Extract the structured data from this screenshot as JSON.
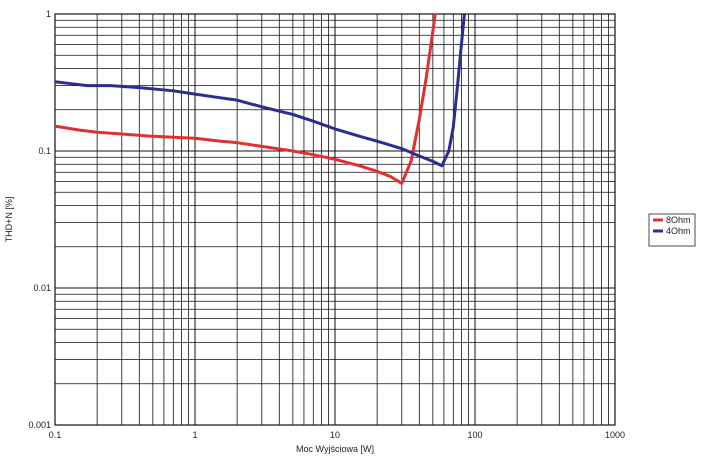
{
  "chart_data": {
    "type": "line",
    "xlabel": "Moc Wyjściowa [W]",
    "ylabel": "THD+N [%]",
    "xscale": "log",
    "yscale": "log",
    "xlim": [
      0.1,
      1000
    ],
    "ylim": [
      0.001,
      1
    ],
    "grid": true,
    "legend_position": "right",
    "x_tick_labels": [
      "0.1",
      "1",
      "10",
      "100",
      "1000"
    ],
    "y_tick_labels": [
      "0.001",
      "0.01",
      "0.1",
      "1"
    ],
    "series": [
      {
        "name": "8Ohm",
        "color": "#e03030",
        "points": [
          [
            0.1,
            0.152
          ],
          [
            0.15,
            0.142
          ],
          [
            0.2,
            0.137
          ],
          [
            0.3,
            0.133
          ],
          [
            0.5,
            0.128
          ],
          [
            0.7,
            0.126
          ],
          [
            1.0,
            0.124
          ],
          [
            1.5,
            0.118
          ],
          [
            2.0,
            0.115
          ],
          [
            3.0,
            0.108
          ],
          [
            5.0,
            0.1
          ],
          [
            7.0,
            0.094
          ],
          [
            10.0,
            0.087
          ],
          [
            15.0,
            0.078
          ],
          [
            20.0,
            0.071
          ],
          [
            25.0,
            0.065
          ],
          [
            30.0,
            0.058
          ],
          [
            35.0,
            0.085
          ],
          [
            40.0,
            0.17
          ],
          [
            45.0,
            0.35
          ],
          [
            50.0,
            0.75
          ],
          [
            52.0,
            1.0
          ]
        ]
      },
      {
        "name": "4Ohm",
        "color": "#2d2d8f",
        "points": [
          [
            0.1,
            0.32
          ],
          [
            0.13,
            0.31
          ],
          [
            0.17,
            0.3
          ],
          [
            0.25,
            0.3
          ],
          [
            0.4,
            0.29
          ],
          [
            0.7,
            0.275
          ],
          [
            1.0,
            0.26
          ],
          [
            1.5,
            0.245
          ],
          [
            2.0,
            0.235
          ],
          [
            3.0,
            0.21
          ],
          [
            5.0,
            0.185
          ],
          [
            7.0,
            0.165
          ],
          [
            10.0,
            0.145
          ],
          [
            15.0,
            0.128
          ],
          [
            20.0,
            0.118
          ],
          [
            30.0,
            0.104
          ],
          [
            40.0,
            0.092
          ],
          [
            50.0,
            0.084
          ],
          [
            58.0,
            0.078
          ],
          [
            65.0,
            0.1
          ],
          [
            70.0,
            0.15
          ],
          [
            75.0,
            0.3
          ],
          [
            80.0,
            0.6
          ],
          [
            84.0,
            1.0
          ]
        ]
      }
    ]
  }
}
